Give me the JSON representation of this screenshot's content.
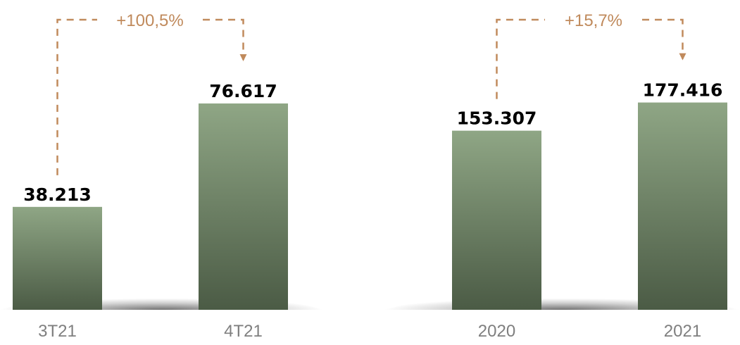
{
  "chart_data": [
    {
      "type": "bar",
      "categories": [
        "3T21",
        "4T21"
      ],
      "values": [
        38213,
        76617
      ],
      "value_labels": [
        "38.213",
        "76.617"
      ],
      "change_label": "+100,5%",
      "ylim": [
        0,
        80000
      ]
    },
    {
      "type": "bar",
      "categories": [
        "2020",
        "2021"
      ],
      "values": [
        153307,
        177416
      ],
      "value_labels": [
        "153.307",
        "177.416"
      ],
      "change_label": "+15,7%",
      "ylim": [
        0,
        185000
      ]
    }
  ],
  "colors": {
    "bar_top": "#8fa685",
    "bar_bottom": "#4b5b45",
    "connector": "#c08a5c",
    "category_text": "#7f7f7f",
    "value_text": "#000000"
  }
}
